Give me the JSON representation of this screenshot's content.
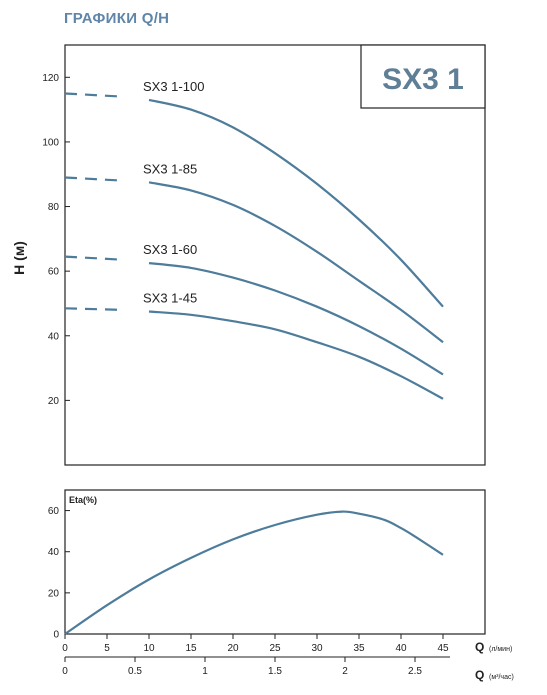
{
  "header": {
    "title": "ГРАФИКИ Q/H",
    "title_color": "#5f86a8"
  },
  "model_box": {
    "text": "SX3 1",
    "color": "#5f7f97"
  },
  "colors": {
    "curve": "#4e7c9b",
    "axis": "#222222"
  },
  "chart_data": [
    {
      "type": "line",
      "ylabel": "H (м)",
      "xlim": [
        0,
        50
      ],
      "ylim": [
        0,
        130
      ],
      "yticks": [
        "20",
        "40",
        "60",
        "80",
        "100",
        "120"
      ],
      "grid": false,
      "series": [
        {
          "name": "SX3 1-100",
          "dashed": {
            "x": [
              0,
              7
            ],
            "y": [
              115,
              114
            ]
          },
          "x": [
            10,
            15,
            20,
            25,
            30,
            35,
            40,
            45
          ],
          "y": [
            113,
            110,
            104.5,
            96.5,
            87,
            76,
            63.5,
            49
          ]
        },
        {
          "name": "SX3 1-85",
          "dashed": {
            "x": [
              0,
              7
            ],
            "y": [
              89,
              88
            ]
          },
          "x": [
            10,
            15,
            20,
            25,
            30,
            35,
            40,
            45
          ],
          "y": [
            87.5,
            85,
            80.5,
            74,
            66,
            57,
            48,
            38
          ]
        },
        {
          "name": "SX3 1-60",
          "dashed": {
            "x": [
              0,
              7
            ],
            "y": [
              64.5,
              63.5
            ]
          },
          "x": [
            10,
            15,
            20,
            25,
            30,
            35,
            40,
            45
          ],
          "y": [
            62.5,
            61,
            58,
            54,
            49,
            43,
            36,
            28
          ]
        },
        {
          "name": "SX3 1-45",
          "dashed": {
            "x": [
              0,
              7
            ],
            "y": [
              48.5,
              48
            ]
          },
          "x": [
            10,
            15,
            20,
            25,
            30,
            35,
            40,
            45
          ],
          "y": [
            47.5,
            46.5,
            44.5,
            42,
            38,
            33.5,
            27.5,
            20.5
          ]
        }
      ]
    },
    {
      "type": "line",
      "title": "Eta(%)",
      "xlim": [
        0,
        50
      ],
      "ylim": [
        0,
        70
      ],
      "yticks": [
        "0",
        "20",
        "40",
        "60"
      ],
      "xticks": [
        "0",
        "5",
        "10",
        "15",
        "20",
        "25",
        "30",
        "35",
        "40",
        "45"
      ],
      "xlabel": "Q",
      "xlabel_unit": "(л/мин)",
      "x2ticks": [
        "0",
        "0.5",
        "1",
        "1.5",
        "2",
        "2.5"
      ],
      "x2label": "Q",
      "x2label_unit": "(м³/час)",
      "grid": false,
      "series": [
        {
          "x": [
            0,
            5,
            10,
            15,
            20,
            25,
            30,
            33,
            35,
            38,
            40,
            42,
            45
          ],
          "y": [
            0,
            14,
            26.5,
            37,
            46,
            53,
            58,
            59.5,
            58.5,
            55.5,
            51.5,
            46.5,
            38.5
          ]
        }
      ]
    }
  ]
}
